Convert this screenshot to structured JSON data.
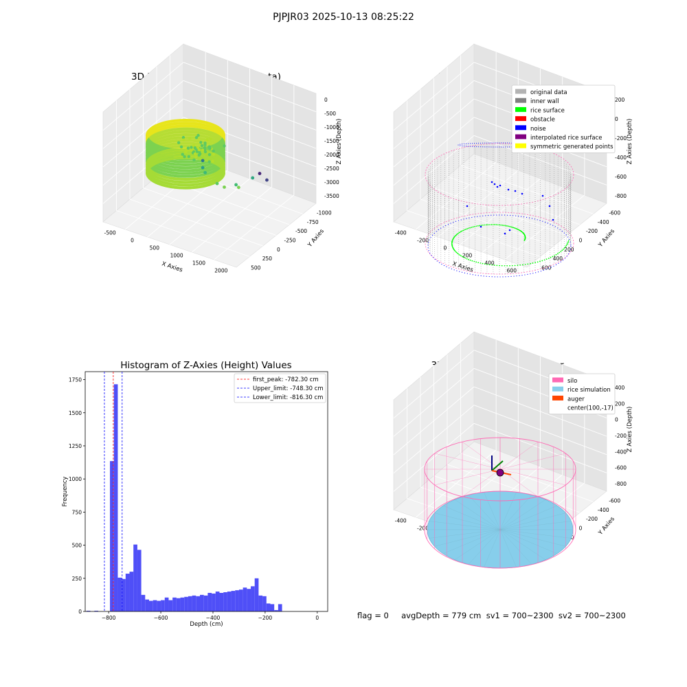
{
  "figure": {
    "suptitle": "PJPJR03 2025-10-13 08:25:22",
    "status_text": "flag = 0     avgDepth = 779 cm  sv1 = 700~2300  sv2 = 700~2300"
  },
  "colors": {
    "original": "#b3b3b3",
    "inner_wall": "#808080",
    "rice_surface": "#00ff00",
    "obstacle": "#ff0000",
    "noise": "#0000ff",
    "interpolated": "#800080",
    "symmetric": "#ffff00",
    "hist_bar": "#4f4ff7",
    "silo": "#ff69b4",
    "rice_sim": "#87ceeb",
    "auger": "#ff4500"
  },
  "chart_data": [
    {
      "type": "scatter",
      "title": "3D Plot of Silo Interior(row data)",
      "xlabel": "X Axies",
      "ylabel": "Y Axies",
      "zlabel": "Z Axies (Depth)",
      "x_ticks": [
        "-500",
        "0",
        "500",
        "1000",
        "1500",
        "2000"
      ],
      "y_ticks": [
        "500",
        "250",
        "0",
        "-250",
        "-500",
        "-750",
        "-1000"
      ],
      "z_ticks": [
        "0",
        "-500",
        "-1000",
        "-1500",
        "-2000",
        "-2500",
        "-3000",
        "-3500"
      ],
      "colormap": "viridis",
      "outliers": [
        {
          "x": 1950,
          "y": 400,
          "z": -1300
        },
        {
          "x": 1500,
          "y": 250,
          "z": -1750
        },
        {
          "x": 1150,
          "y": 50,
          "z": -2100
        },
        {
          "x": 700,
          "y": -150,
          "z": -2250
        },
        {
          "x": 550,
          "y": -250,
          "z": -2300
        },
        {
          "x": 450,
          "y": -350,
          "z": -2250
        },
        {
          "x": 1250,
          "y": -250,
          "z": -2500
        },
        {
          "x": 1300,
          "y": -550,
          "z": -2650
        },
        {
          "x": 1500,
          "y": -650,
          "z": -2750
        },
        {
          "x": 1200,
          "y": -800,
          "z": -2900
        }
      ]
    },
    {
      "type": "scatter",
      "title": "3D classify of Silo Interior",
      "xlabel": "X Axies",
      "ylabel": "Y Axies",
      "zlabel": "Z Axies (Depth)",
      "x_ticks": [
        "-400",
        "-200",
        "0",
        "200",
        "400",
        "600"
      ],
      "y_ticks": [
        "600",
        "400",
        "200",
        "0",
        "-200",
        "-400",
        "-600"
      ],
      "z_ticks": [
        "200",
        "0",
        "-200",
        "-400",
        "-600",
        "-800"
      ],
      "legend": [
        "original data",
        "inner wall",
        "rice surface",
        "obstacle",
        "noise",
        "interpolated rice surface",
        "symmetric generated points"
      ],
      "legend_loc": "upper right"
    },
    {
      "type": "bar",
      "title": "Histogram of Z-Axies (Height) Values",
      "xlabel": "Depth (cm)",
      "ylabel": "Frequency",
      "xlim": [
        -890,
        40
      ],
      "ylim": [
        0,
        1810
      ],
      "x_ticks": [
        -800,
        -600,
        -400,
        -200,
        0
      ],
      "y_ticks": [
        0,
        250,
        500,
        750,
        1000,
        1250,
        1500,
        1750
      ],
      "bin_start": -885,
      "bin_width": 15,
      "values": [
        5,
        0,
        5,
        0,
        0,
        0,
        1135,
        1715,
        255,
        245,
        285,
        300,
        505,
        465,
        125,
        90,
        80,
        85,
        80,
        85,
        105,
        85,
        105,
        100,
        105,
        110,
        115,
        120,
        115,
        125,
        120,
        140,
        135,
        150,
        140,
        145,
        150,
        155,
        160,
        165,
        180,
        170,
        190,
        250,
        120,
        115,
        60,
        55,
        10,
        55
      ],
      "lines": [
        {
          "label": "first_peak: -782.30 cm",
          "x": -782.3,
          "color": "red"
        },
        {
          "label": "Upper_limit: -748.30 cm",
          "x": -748.3,
          "color": "blue"
        },
        {
          "label": "Lower_limit: -816.30 cm",
          "x": -816.3,
          "color": "blue"
        }
      ],
      "legend_loc": "upper right"
    },
    {
      "type": "scatter",
      "title": "3D simulation of Silo Interior",
      "xlabel": "X Axies",
      "ylabel": "Y Axies",
      "zlabel": "Z Axies (Depth)",
      "x_ticks": [
        "-400",
        "-200",
        "0",
        "200",
        "400",
        "600"
      ],
      "y_ticks": [
        "600",
        "400",
        "200",
        "0",
        "-200",
        "-400",
        "-600"
      ],
      "z_ticks": [
        "400",
        "200",
        "0",
        "-200",
        "-400",
        "-600",
        "-800"
      ],
      "legend": [
        "silo",
        "rice simulation",
        "auger",
        "center(100,-17)"
      ],
      "legend_loc": "upper right"
    }
  ]
}
